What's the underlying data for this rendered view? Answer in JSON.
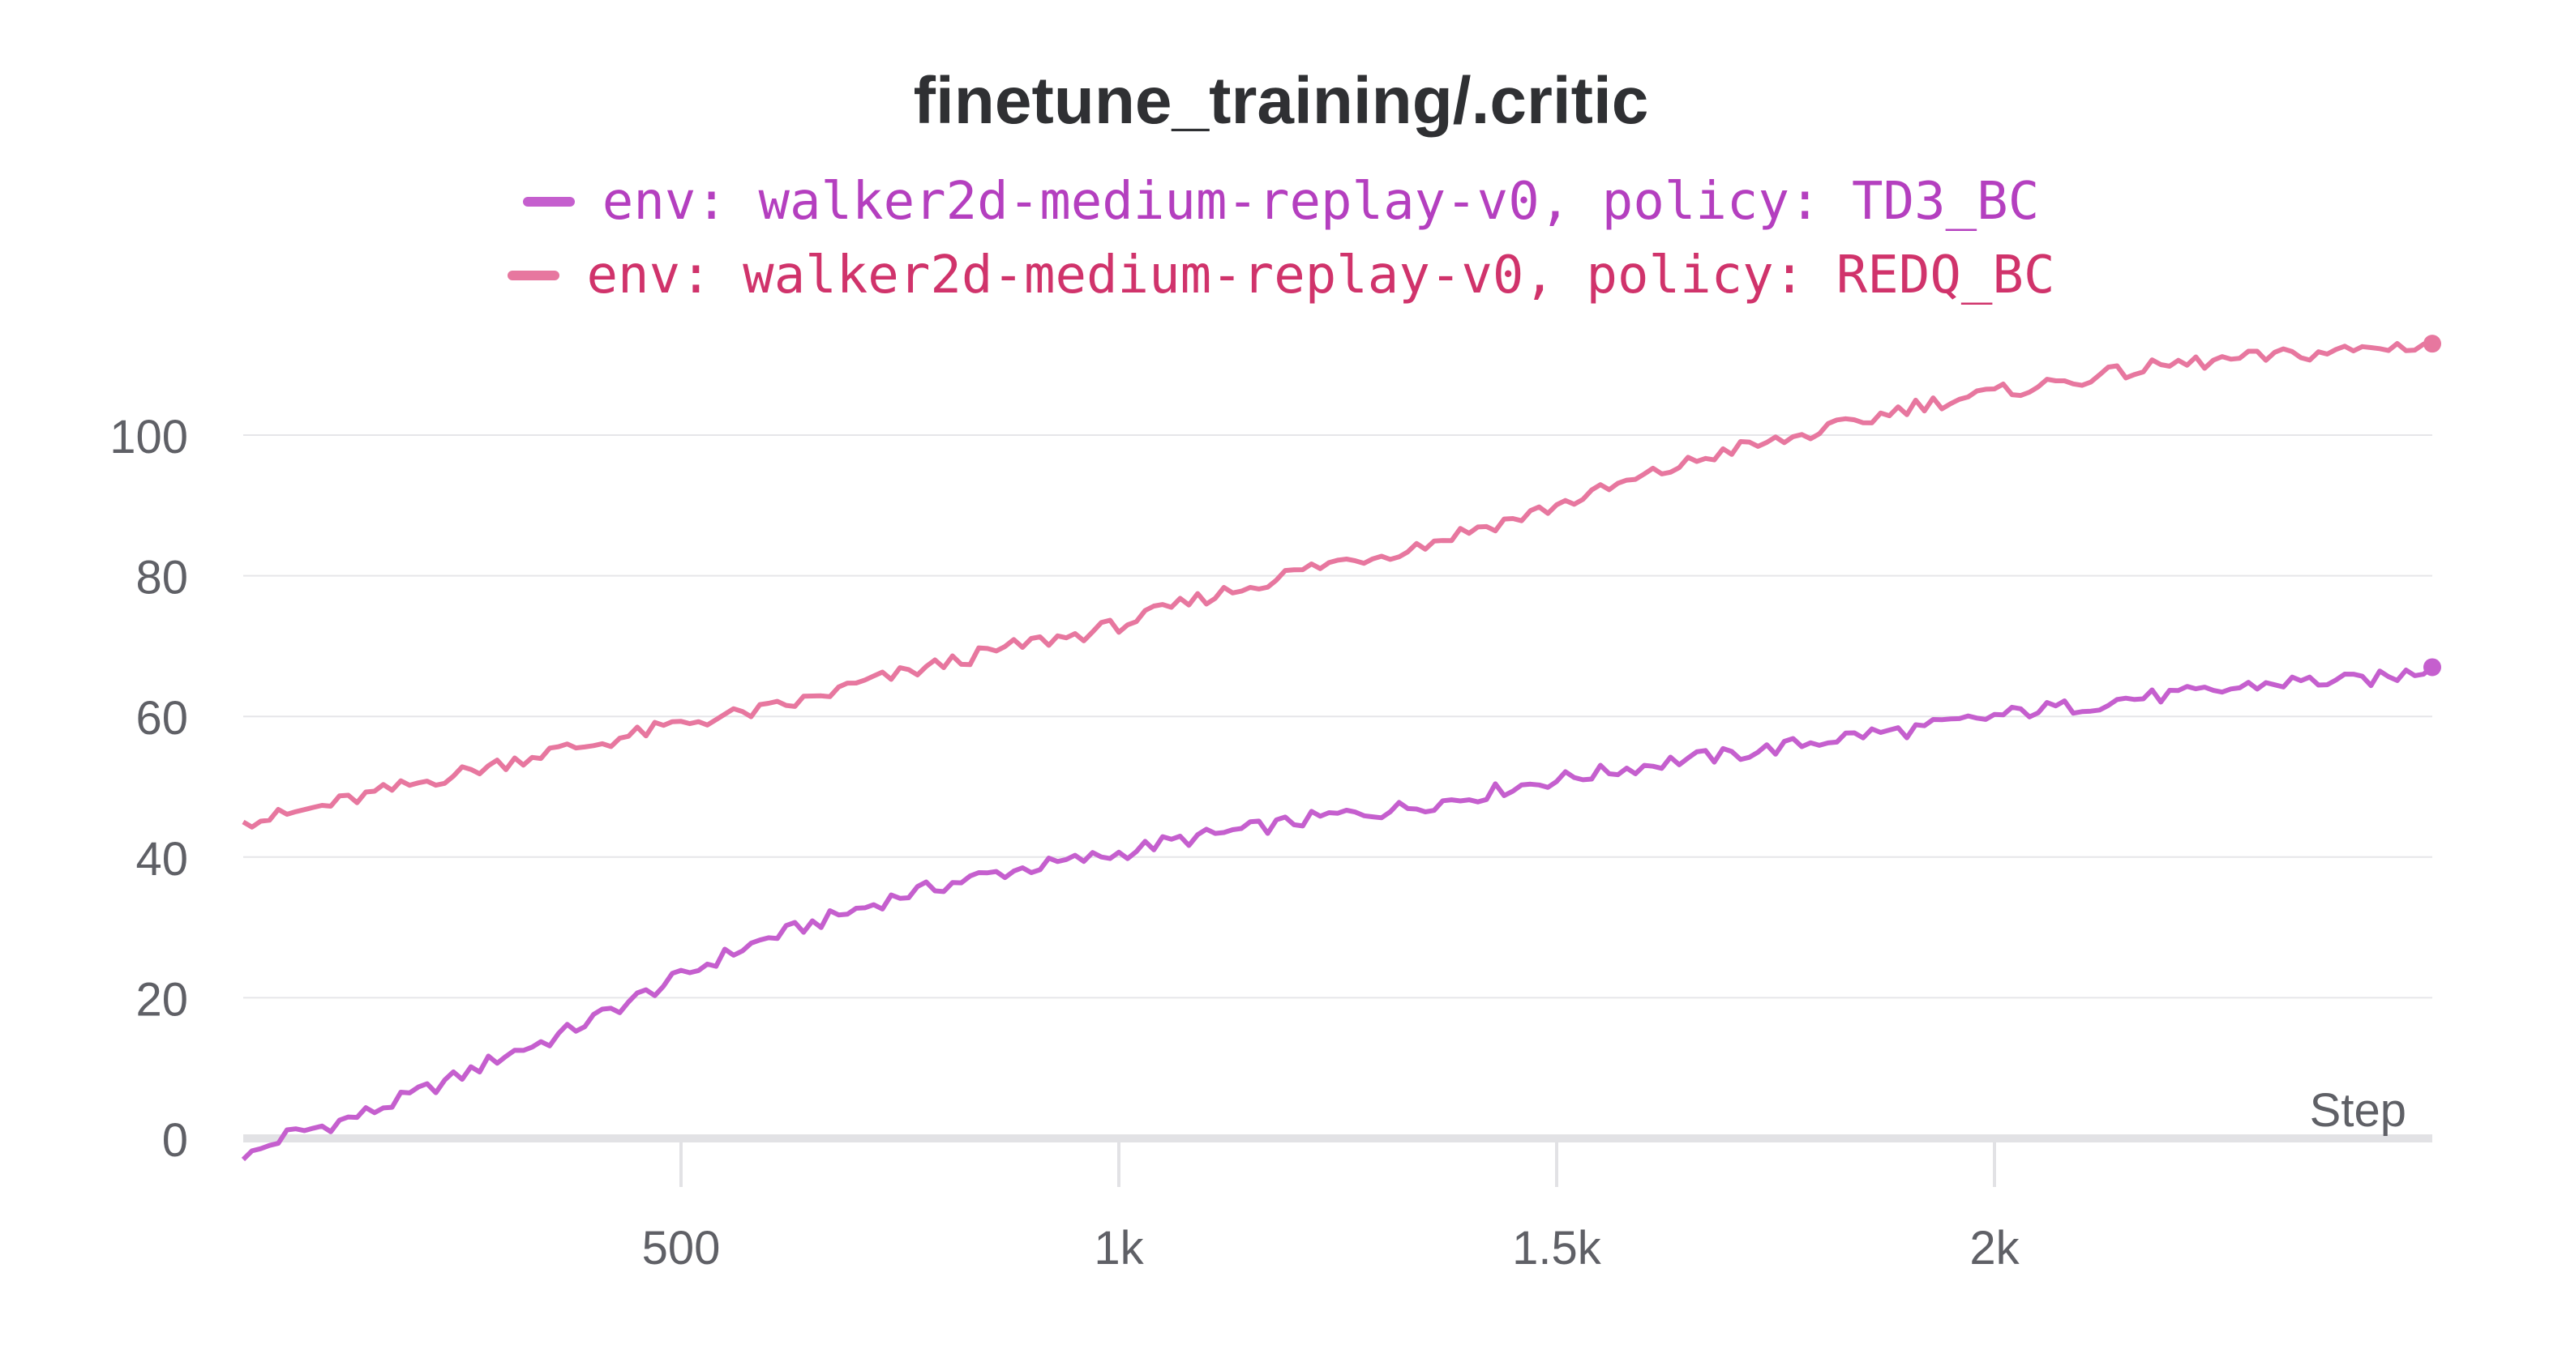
{
  "chart_data": {
    "type": "line",
    "title": "finetune_training/.critic",
    "xlabel": "Step",
    "ylabel": "",
    "xlim": [
      0,
      2500
    ],
    "ylim": [
      -5,
      115
    ],
    "x_ticks": [
      500,
      1000,
      1500,
      2000
    ],
    "x_tick_labels": [
      "500",
      "1k",
      "1.5k",
      "2k"
    ],
    "y_ticks": [
      0,
      20,
      40,
      60,
      80,
      100
    ],
    "y_tick_labels": [
      "0",
      "20",
      "40",
      "60",
      "80",
      "100"
    ],
    "grid": true,
    "legend_position": "top",
    "series": [
      {
        "name": "env: walker2d-medium-replay-v0, policy: TD3_BC",
        "color": "#c55fce",
        "x": [
          0,
          50,
          100,
          150,
          200,
          250,
          300,
          350,
          400,
          450,
          500,
          550,
          600,
          650,
          700,
          750,
          800,
          850,
          900,
          950,
          1000,
          1050,
          1100,
          1150,
          1200,
          1250,
          1300,
          1350,
          1400,
          1450,
          1500,
          1550,
          1600,
          1650,
          1700,
          1750,
          1800,
          1850,
          1900,
          1950,
          2000,
          2050,
          2100,
          2150,
          2200,
          2250,
          2300,
          2350,
          2400,
          2450,
          2500
        ],
        "values": [
          -3,
          0.5,
          2,
          4,
          6.5,
          9,
          12,
          14,
          17,
          20,
          23,
          26,
          28.5,
          30.5,
          32.5,
          34.5,
          36,
          37.5,
          38.5,
          39.5,
          40.5,
          42,
          43,
          44,
          45,
          46,
          46.5,
          47.5,
          48.5,
          50,
          51,
          52,
          53,
          54,
          54.5,
          55.5,
          56.5,
          57.5,
          58,
          59,
          60,
          61,
          61.5,
          62.5,
          63,
          63.5,
          64.5,
          65,
          65,
          65.5,
          67
        ]
      },
      {
        "name": "env: walker2d-medium-replay-v0, policy: REDQ_BC",
        "color": "#e7779f",
        "x": [
          0,
          50,
          100,
          150,
          200,
          250,
          300,
          350,
          400,
          450,
          500,
          550,
          600,
          650,
          700,
          750,
          800,
          850,
          900,
          950,
          1000,
          1050,
          1100,
          1150,
          1200,
          1250,
          1300,
          1350,
          1400,
          1450,
          1500,
          1550,
          1600,
          1650,
          1700,
          1750,
          1800,
          1850,
          1900,
          1950,
          2000,
          2050,
          2100,
          2150,
          2200,
          2250,
          2300,
          2350,
          2400,
          2450,
          2500
        ],
        "values": [
          45,
          46,
          47.5,
          49,
          50.5,
          52,
          53.5,
          55,
          56,
          57.5,
          59,
          60,
          61,
          62.5,
          64.5,
          66,
          67.5,
          69,
          70.5,
          71.5,
          73,
          75,
          77,
          78.5,
          80.5,
          82,
          83,
          84.5,
          86.5,
          88,
          90,
          92,
          94,
          96,
          98,
          99,
          100.5,
          102,
          104,
          105,
          106,
          107,
          108,
          109,
          110,
          110.5,
          111,
          111.5,
          112,
          112.5,
          113
        ]
      }
    ]
  }
}
